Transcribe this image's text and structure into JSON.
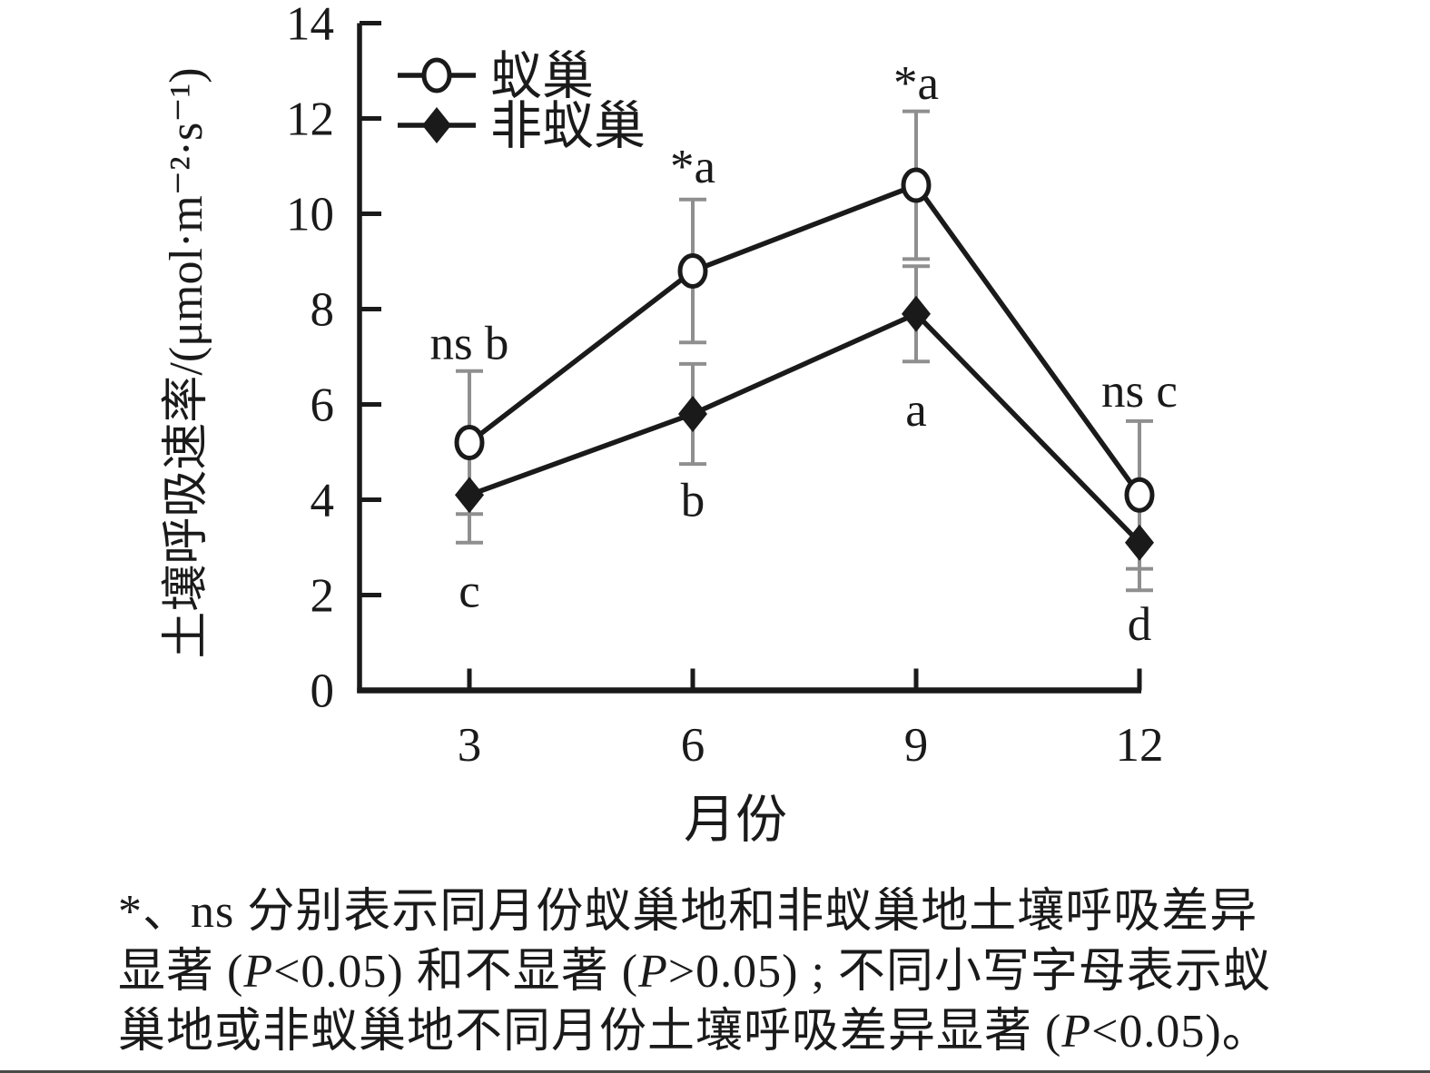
{
  "figure": {
    "footnote_lines": [
      "*、ns 分别表示同月份蚁巢地和非蚁巢地土壤呼吸差异",
      "显著 (P<0.05) 和不显著 (P>0.05) ; 不同小写字母表示蚁",
      "巢地或非蚁巢地不同月份土壤呼吸差异显著 (P<0.05)。"
    ]
  },
  "chart_data": {
    "type": "line",
    "title": "",
    "x": [
      3,
      6,
      9,
      12
    ],
    "x_tick_labels": [
      "3",
      "6",
      "9",
      "12"
    ],
    "xlabel": "月份",
    "ylabel": "土壤呼吸速率/(μmol·m⁻²·s⁻¹)",
    "ylim": [
      0,
      14
    ],
    "yticks": [
      0,
      2,
      4,
      6,
      8,
      10,
      12,
      14
    ],
    "grid": false,
    "legend_position": "top-left-inside",
    "series": [
      {
        "name": "蚁巢",
        "marker": "open-circle",
        "values": [
          5.2,
          8.8,
          10.6,
          4.1
        ],
        "error_bars": [
          1.5,
          1.5,
          1.55,
          1.55
        ]
      },
      {
        "name": "非蚁巢",
        "marker": "filled-diamond",
        "values": [
          4.1,
          5.8,
          7.9,
          3.1
        ],
        "error_bars": [
          1.0,
          1.05,
          1.0,
          1.0
        ]
      }
    ],
    "annotations": [
      {
        "x": 3,
        "above": "ns b",
        "above_y": 7.3,
        "below": "c",
        "below_y": 2.1
      },
      {
        "x": 6,
        "above": "*a",
        "above_y": 11.0,
        "below": "b",
        "below_y": 4.0
      },
      {
        "x": 9,
        "above": "*a",
        "above_y": 12.75,
        "below": "a",
        "below_y": 5.9
      },
      {
        "x": 12,
        "above": "ns c",
        "above_y": 6.3,
        "below": "d",
        "below_y": 1.4
      }
    ],
    "colors": {
      "series_line": "#1a1a1a",
      "error_bar": "#8f8f8f",
      "marker_fill_open": "#ffffff",
      "text": "#1a1a1a"
    }
  }
}
